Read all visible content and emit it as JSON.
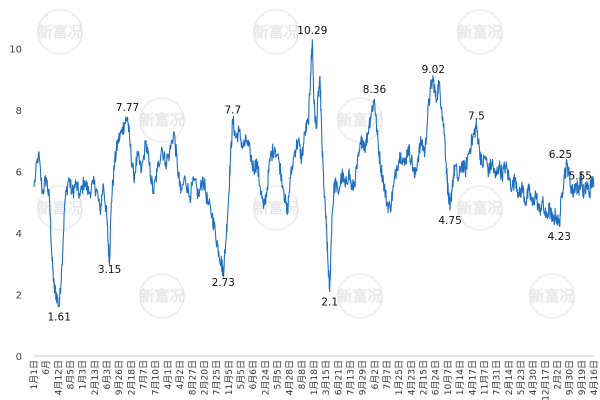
{
  "chart_data": {
    "type": "line",
    "title": "",
    "xlabel": "",
    "ylabel": "",
    "ylim": [
      0,
      11
    ],
    "yticks": [
      0,
      2,
      4,
      6,
      8,
      10
    ],
    "grid": false,
    "legend": "none",
    "line_color": "#1f6fc0",
    "x_tick_labels": [
      "1月1日",
      "6月",
      "4月12日",
      "8月5日",
      "1月3日",
      "2月13日",
      "6月3日",
      "9月26日",
      "2月18日",
      "7月7日",
      "7月10日",
      "4月1日",
      "4月2日",
      "8月27日",
      "2月20日",
      "7月25日",
      "11月5日",
      "5月5日",
      "6月6日",
      "2月24日",
      "5月5日",
      "4月28日",
      "8月8日",
      "1月18日",
      "3月15日",
      "6月21日",
      "7月13日",
      "9月29日",
      "6月2日",
      "7月7日",
      "1月25日",
      "4月23日",
      "2月15日",
      "6月24日",
      "10月7日",
      "1月14日",
      "4月17日",
      "11月7日",
      "7月31日",
      "2月14日",
      "5月23日",
      "4月30日",
      "12月17日",
      "2月2日",
      "9月30日",
      "9月19日",
      "4月16日"
    ],
    "annotations": [
      {
        "text": "1.61",
        "x": 0.045,
        "y": 1.61
      },
      {
        "text": "3.15",
        "x": 0.135,
        "y": 3.15
      },
      {
        "text": "7.77",
        "x": 0.167,
        "y": 7.77
      },
      {
        "text": "2.73",
        "x": 0.338,
        "y": 2.73
      },
      {
        "text": "7.7",
        "x": 0.355,
        "y": 7.7
      },
      {
        "text": "10.29",
        "x": 0.497,
        "y": 10.29
      },
      {
        "text": "2.1",
        "x": 0.528,
        "y": 2.1
      },
      {
        "text": "8.36",
        "x": 0.608,
        "y": 8.36
      },
      {
        "text": "9.02",
        "x": 0.713,
        "y": 9.02
      },
      {
        "text": "4.75",
        "x": 0.743,
        "y": 4.75
      },
      {
        "text": "7.5",
        "x": 0.79,
        "y": 7.5
      },
      {
        "text": "6.25",
        "x": 0.94,
        "y": 6.25
      },
      {
        "text": "4.23",
        "x": 0.938,
        "y": 4.23
      },
      {
        "text": "5.55",
        "x": 1.0,
        "y": 5.55
      }
    ],
    "series_points": [
      [
        0.0,
        5.5
      ],
      [
        0.008,
        6.6
      ],
      [
        0.015,
        5.3
      ],
      [
        0.022,
        5.8
      ],
      [
        0.028,
        5.0
      ],
      [
        0.032,
        3.2
      ],
      [
        0.036,
        2.2
      ],
      [
        0.04,
        2.0
      ],
      [
        0.045,
        1.61
      ],
      [
        0.05,
        3.0
      ],
      [
        0.055,
        5.0
      ],
      [
        0.062,
        5.8
      ],
      [
        0.068,
        5.3
      ],
      [
        0.075,
        5.6
      ],
      [
        0.082,
        5.2
      ],
      [
        0.09,
        5.7
      ],
      [
        0.098,
        5.3
      ],
      [
        0.106,
        5.6
      ],
      [
        0.112,
        5.4
      ],
      [
        0.118,
        4.7
      ],
      [
        0.124,
        5.6
      ],
      [
        0.13,
        4.5
      ],
      [
        0.133,
        3.5
      ],
      [
        0.135,
        3.15
      ],
      [
        0.138,
        5.0
      ],
      [
        0.144,
        6.3
      ],
      [
        0.15,
        7.0
      ],
      [
        0.157,
        7.3
      ],
      [
        0.162,
        7.6
      ],
      [
        0.167,
        7.77
      ],
      [
        0.172,
        6.8
      ],
      [
        0.178,
        5.8
      ],
      [
        0.185,
        6.5
      ],
      [
        0.192,
        6.0
      ],
      [
        0.2,
        7.0
      ],
      [
        0.206,
        6.2
      ],
      [
        0.213,
        5.3
      ],
      [
        0.22,
        6.0
      ],
      [
        0.228,
        6.8
      ],
      [
        0.235,
        6.3
      ],
      [
        0.242,
        6.6
      ],
      [
        0.25,
        7.3
      ],
      [
        0.256,
        6.2
      ],
      [
        0.262,
        5.3
      ],
      [
        0.27,
        5.8
      ],
      [
        0.278,
        5.2
      ],
      [
        0.286,
        5.7
      ],
      [
        0.294,
        5.2
      ],
      [
        0.302,
        5.8
      ],
      [
        0.31,
        5.0
      ],
      [
        0.318,
        4.6
      ],
      [
        0.324,
        4.0
      ],
      [
        0.33,
        3.4
      ],
      [
        0.335,
        3.0
      ],
      [
        0.338,
        2.73
      ],
      [
        0.342,
        3.6
      ],
      [
        0.347,
        5.0
      ],
      [
        0.351,
        6.5
      ],
      [
        0.355,
        7.7
      ],
      [
        0.36,
        7.1
      ],
      [
        0.366,
        7.3
      ],
      [
        0.373,
        6.8
      ],
      [
        0.38,
        7.0
      ],
      [
        0.386,
        6.6
      ],
      [
        0.392,
        6.1
      ],
      [
        0.398,
        6.3
      ],
      [
        0.404,
        5.5
      ],
      [
        0.41,
        4.8
      ],
      [
        0.416,
        5.4
      ],
      [
        0.422,
        6.5
      ],
      [
        0.43,
        6.8
      ],
      [
        0.438,
        6.3
      ],
      [
        0.446,
        5.4
      ],
      [
        0.452,
        4.6
      ],
      [
        0.458,
        5.8
      ],
      [
        0.466,
        6.7
      ],
      [
        0.472,
        7.0
      ],
      [
        0.478,
        6.4
      ],
      [
        0.484,
        7.3
      ],
      [
        0.49,
        7.6
      ],
      [
        0.494,
        9.2
      ],
      [
        0.497,
        10.29
      ],
      [
        0.5,
        8.2
      ],
      [
        0.504,
        7.4
      ],
      [
        0.508,
        8.6
      ],
      [
        0.511,
        8.9
      ],
      [
        0.514,
        7.0
      ],
      [
        0.518,
        5.4
      ],
      [
        0.522,
        4.2
      ],
      [
        0.525,
        3.0
      ],
      [
        0.528,
        2.1
      ],
      [
        0.532,
        4.5
      ],
      [
        0.537,
        5.7
      ],
      [
        0.543,
        5.3
      ],
      [
        0.55,
        5.9
      ],
      [
        0.556,
        5.5
      ],
      [
        0.562,
        6.0
      ],
      [
        0.568,
        5.4
      ],
      [
        0.574,
        5.8
      ],
      [
        0.58,
        6.5
      ],
      [
        0.586,
        7.1
      ],
      [
        0.592,
        6.8
      ],
      [
        0.598,
        7.5
      ],
      [
        0.603,
        8.0
      ],
      [
        0.608,
        8.36
      ],
      [
        0.613,
        7.2
      ],
      [
        0.618,
        6.3
      ],
      [
        0.624,
        5.7
      ],
      [
        0.63,
        5.0
      ],
      [
        0.636,
        4.8
      ],
      [
        0.642,
        5.5
      ],
      [
        0.648,
        6.2
      ],
      [
        0.655,
        6.6
      ],
      [
        0.662,
        6.2
      ],
      [
        0.668,
        6.8
      ],
      [
        0.674,
        6.4
      ],
      [
        0.68,
        5.8
      ],
      [
        0.686,
        6.5
      ],
      [
        0.692,
        7.0
      ],
      [
        0.698,
        6.6
      ],
      [
        0.703,
        7.8
      ],
      [
        0.708,
        8.7
      ],
      [
        0.713,
        9.02
      ],
      [
        0.718,
        8.3
      ],
      [
        0.723,
        8.9
      ],
      [
        0.728,
        8.1
      ],
      [
        0.733,
        7.2
      ],
      [
        0.737,
        6.0
      ],
      [
        0.74,
        5.2
      ],
      [
        0.743,
        4.75
      ],
      [
        0.747,
        5.6
      ],
      [
        0.752,
        6.2
      ],
      [
        0.758,
        5.7
      ],
      [
        0.764,
        6.3
      ],
      [
        0.77,
        6.0
      ],
      [
        0.776,
        6.6
      ],
      [
        0.782,
        7.0
      ],
      [
        0.787,
        7.3
      ],
      [
        0.79,
        7.5
      ],
      [
        0.795,
        6.8
      ],
      [
        0.8,
        6.2
      ],
      [
        0.806,
        6.5
      ],
      [
        0.812,
        6.0
      ],
      [
        0.818,
        6.3
      ],
      [
        0.824,
        5.8
      ],
      [
        0.83,
        6.2
      ],
      [
        0.836,
        5.9
      ],
      [
        0.842,
        6.2
      ],
      [
        0.848,
        5.8
      ],
      [
        0.854,
        5.5
      ],
      [
        0.86,
        5.8
      ],
      [
        0.866,
        5.2
      ],
      [
        0.872,
        5.5
      ],
      [
        0.878,
        5.0
      ],
      [
        0.884,
        5.4
      ],
      [
        0.89,
        4.9
      ],
      [
        0.896,
        5.3
      ],
      [
        0.902,
        4.7
      ],
      [
        0.908,
        5.0
      ],
      [
        0.914,
        4.5
      ],
      [
        0.92,
        4.8
      ],
      [
        0.926,
        4.4
      ],
      [
        0.932,
        4.6
      ],
      [
        0.938,
        4.23
      ],
      [
        0.942,
        5.2
      ],
      [
        0.947,
        5.9
      ],
      [
        0.952,
        6.25
      ],
      [
        0.957,
        5.7
      ],
      [
        0.962,
        5.3
      ],
      [
        0.967,
        5.6
      ],
      [
        0.972,
        5.4
      ],
      [
        0.977,
        5.8
      ],
      [
        0.982,
        5.2
      ],
      [
        0.987,
        5.6
      ],
      [
        0.992,
        5.3
      ],
      [
        0.996,
        5.7
      ],
      [
        1.0,
        5.55
      ]
    ]
  },
  "watermark": {
    "text": "新富况",
    "positions": [
      [
        0.1,
        0.08
      ],
      [
        0.46,
        0.08
      ],
      [
        0.8,
        0.08
      ],
      [
        0.27,
        0.3
      ],
      [
        0.6,
        0.3
      ],
      [
        0.1,
        0.52
      ],
      [
        0.46,
        0.52
      ],
      [
        0.8,
        0.52
      ],
      [
        0.27,
        0.74
      ],
      [
        0.6,
        0.74
      ],
      [
        0.92,
        0.74
      ]
    ]
  }
}
